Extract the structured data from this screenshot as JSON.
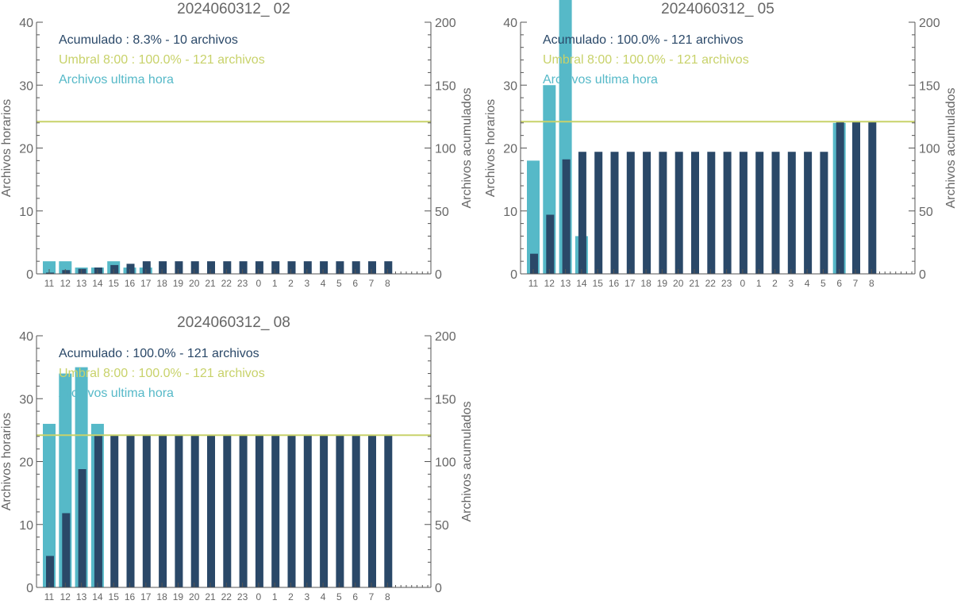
{
  "colors": {
    "hourly": "#56B9C8",
    "accumulated": "#2A4868",
    "threshold": "#C8D26A",
    "axis": "#555555",
    "text": "#666666"
  },
  "chart_data": [
    {
      "type": "bar",
      "title": "2024060312_ 02",
      "ylabel_left": "Archivos horarios",
      "ylabel_right": "Archivos acumulados",
      "ylim_left": [
        0,
        40
      ],
      "ylim_right": [
        0,
        200
      ],
      "yticks_left": [
        "0",
        "10",
        "20",
        "30",
        "40"
      ],
      "yticks_right": [
        "0",
        "50",
        "100",
        "150",
        "200"
      ],
      "categories": [
        "11",
        "12",
        "13",
        "14",
        "15",
        "16",
        "17",
        "18",
        "19",
        "20",
        "21",
        "22",
        "23",
        "0",
        "1",
        "2",
        "3",
        "4",
        "5",
        "6",
        "7",
        "8"
      ],
      "threshold": 121,
      "legend": [
        {
          "text": "Acumulado : 8.3% - 10 archivos",
          "series": "accumulated"
        },
        {
          "text": "Umbral 8:00 : 100.0% - 121 archivos",
          "series": "threshold"
        },
        {
          "text": "Archivos ultima hora",
          "series": "hourly"
        }
      ],
      "series": [
        {
          "key": "hourly",
          "values": [
            2,
            2,
            1,
            1,
            2,
            1,
            1,
            0,
            0,
            0,
            0,
            0,
            0,
            0,
            0,
            0,
            0,
            0,
            0,
            0,
            0,
            0
          ]
        },
        {
          "key": "accumulated",
          "values": [
            1,
            3,
            4,
            5,
            7,
            8,
            10,
            10,
            10,
            10,
            10,
            10,
            10,
            10,
            10,
            10,
            10,
            10,
            10,
            10,
            10,
            10
          ]
        }
      ]
    },
    {
      "type": "bar",
      "title": "2024060312_ 05",
      "ylabel_left": "Archivos horarios",
      "ylabel_right": "Archivos acumulados",
      "ylim_left": [
        0,
        40
      ],
      "ylim_right": [
        0,
        200
      ],
      "yticks_left": [
        "0",
        "10",
        "20",
        "30",
        "40"
      ],
      "yticks_right": [
        "0",
        "50",
        "100",
        "150",
        "200"
      ],
      "categories": [
        "11",
        "12",
        "13",
        "14",
        "15",
        "16",
        "17",
        "18",
        "19",
        "20",
        "21",
        "22",
        "23",
        "0",
        "1",
        "2",
        "3",
        "4",
        "5",
        "6",
        "7",
        "8"
      ],
      "threshold": 121,
      "legend": [
        {
          "text": "Acumulado : 100.0% - 121 archivos",
          "series": "accumulated"
        },
        {
          "text": "Umbral 8:00 : 100.0% - 121 archivos",
          "series": "threshold"
        },
        {
          "text": "Archivos ultima hora",
          "series": "hourly"
        }
      ],
      "series": [
        {
          "key": "hourly",
          "values": [
            18,
            30,
            44,
            6,
            0,
            0,
            0,
            0,
            0,
            0,
            0,
            0,
            0,
            0,
            0,
            0,
            0,
            0,
            0,
            24,
            0,
            0
          ]
        },
        {
          "key": "accumulated",
          "values": [
            16,
            47,
            91,
            97,
            97,
            97,
            97,
            97,
            97,
            97,
            97,
            97,
            97,
            97,
            97,
            97,
            97,
            97,
            97,
            121,
            121,
            121
          ]
        }
      ]
    },
    {
      "type": "bar",
      "title": "2024060312_ 08",
      "ylabel_left": "Archivos horarios",
      "ylabel_right": "Archivos acumulados",
      "ylim_left": [
        0,
        40
      ],
      "ylim_right": [
        0,
        200
      ],
      "yticks_left": [
        "0",
        "10",
        "20",
        "30",
        "40"
      ],
      "yticks_right": [
        "0",
        "50",
        "100",
        "150",
        "200"
      ],
      "categories": [
        "11",
        "12",
        "13",
        "14",
        "15",
        "16",
        "17",
        "18",
        "19",
        "20",
        "21",
        "22",
        "23",
        "0",
        "1",
        "2",
        "3",
        "4",
        "5",
        "6",
        "7",
        "8"
      ],
      "threshold": 121,
      "legend": [
        {
          "text": "Acumulado : 100.0% - 121 archivos",
          "series": "accumulated"
        },
        {
          "text": "Umbral 8:00 : 100.0% - 121 archivos",
          "series": "threshold"
        },
        {
          "text": "Archivos ultima hora",
          "series": "hourly"
        }
      ],
      "series": [
        {
          "key": "hourly",
          "values": [
            26,
            34,
            35,
            26,
            0,
            0,
            0,
            0,
            0,
            0,
            0,
            0,
            0,
            0,
            0,
            0,
            0,
            0,
            0,
            0,
            0,
            0
          ]
        },
        {
          "key": "accumulated",
          "values": [
            25,
            59,
            94,
            121,
            121,
            121,
            121,
            121,
            121,
            121,
            121,
            121,
            121,
            121,
            121,
            121,
            121,
            121,
            121,
            121,
            121,
            121
          ]
        }
      ]
    }
  ]
}
